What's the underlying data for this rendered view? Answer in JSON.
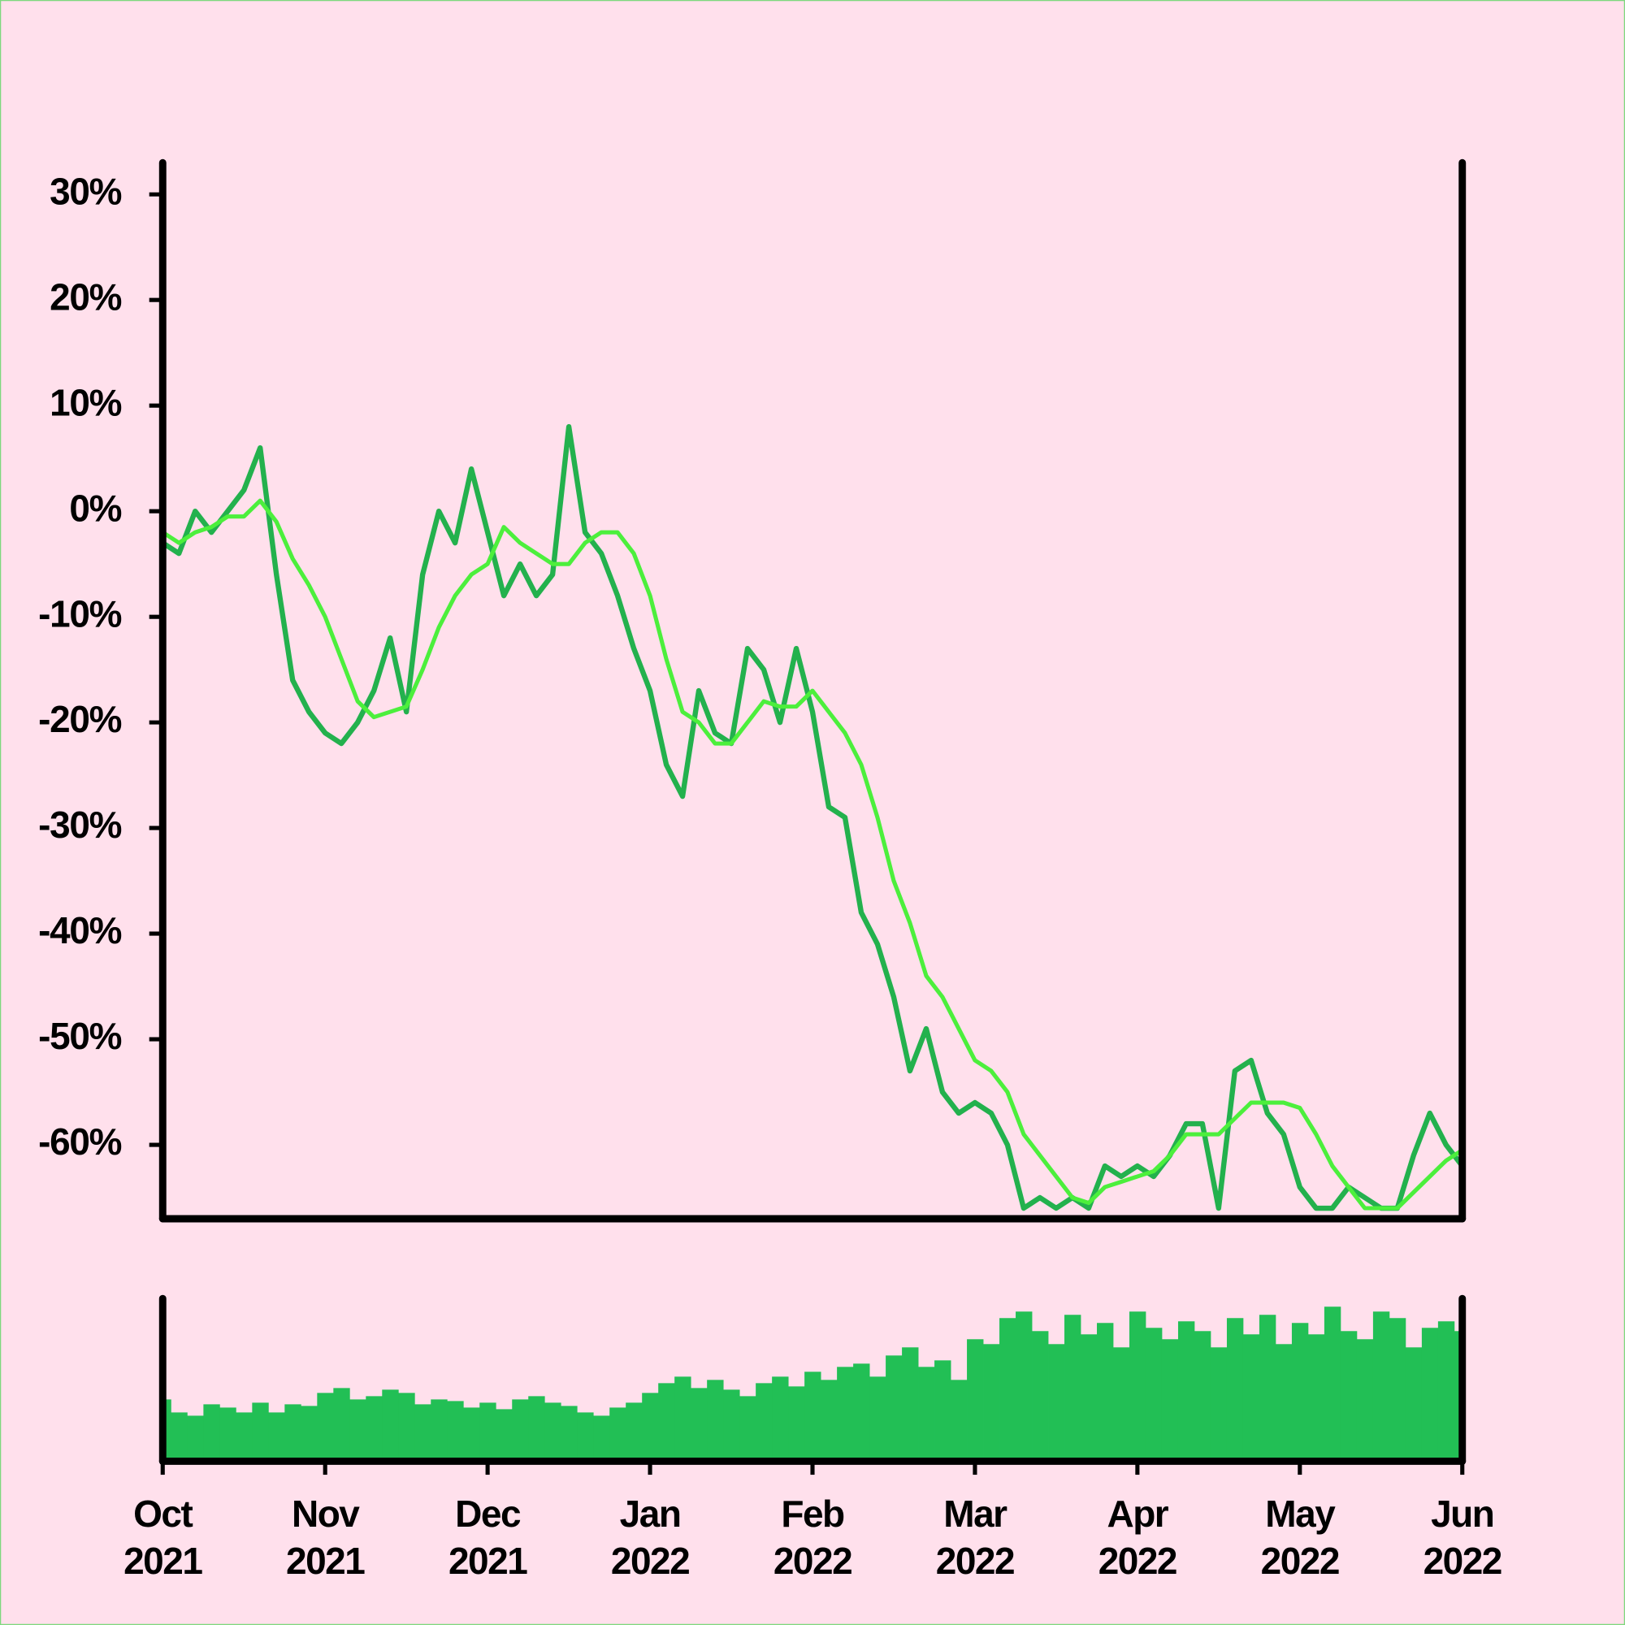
{
  "chart_data": {
    "type": "line",
    "x": [
      0,
      0.1,
      0.2,
      0.3,
      0.4,
      0.5,
      0.6,
      0.7,
      0.8,
      0.9,
      1,
      1.1,
      1.2,
      1.3,
      1.4,
      1.5,
      1.6,
      1.7,
      1.8,
      1.9,
      2,
      2.1,
      2.2,
      2.3,
      2.4,
      2.5,
      2.6,
      2.7,
      2.8,
      2.9,
      3,
      3.1,
      3.2,
      3.3,
      3.4,
      3.5,
      3.6,
      3.7,
      3.8,
      3.9,
      4,
      4.1,
      4.2,
      4.3,
      4.4,
      4.5,
      4.6,
      4.7,
      4.8,
      4.9,
      5,
      5.1,
      5.2,
      5.3,
      5.4,
      5.5,
      5.6,
      5.7,
      5.8,
      5.9,
      6,
      6.1,
      6.2,
      6.3,
      6.4,
      6.5,
      6.6,
      6.7,
      6.8,
      6.9,
      7,
      7.1,
      7.2,
      7.3,
      7.4,
      7.5,
      7.6,
      7.7,
      7.8,
      7.9,
      8
    ],
    "series": [
      {
        "color": "#23b14d",
        "values": [
          -3,
          -4,
          0,
          -2,
          0,
          2,
          6,
          -6,
          -16,
          -19,
          -21,
          -22,
          -20,
          -17,
          -12,
          -19,
          -6,
          0,
          -3,
          4,
          -2,
          -8,
          -5,
          -8,
          -6,
          8,
          -2,
          -4,
          -8,
          -13,
          -17,
          -24,
          -27,
          -17,
          -21,
          -22,
          -13,
          -15,
          -20,
          -13,
          -19,
          -28,
          -29,
          -38,
          -41,
          -46,
          -53,
          -49,
          -55,
          -57,
          -56,
          -57,
          -60,
          -66,
          -65,
          -66,
          -65,
          -66,
          -62,
          -63,
          -62,
          -63,
          -61,
          -58,
          -58,
          -66,
          -53,
          -52,
          -57,
          -59,
          -64,
          -66,
          -66,
          -64,
          -65,
          -66,
          -66,
          -61,
          -57,
          -60,
          -62
        ]
      },
      {
        "color": "#4cef3c",
        "values": [
          -2,
          -3,
          -2,
          -1.5,
          -0.5,
          -0.5,
          1,
          -1,
          -4.5,
          -7,
          -10,
          -14,
          -18,
          -19.5,
          -19,
          -18.5,
          -15,
          -11,
          -8,
          -6,
          -5,
          -1.5,
          -3,
          -4,
          -5,
          -5,
          -3,
          -2,
          -2,
          -4,
          -8,
          -14,
          -19,
          -20,
          -22,
          -22,
          -20,
          -18,
          -18.5,
          -18.5,
          -17,
          -19,
          -21,
          -24,
          -29,
          -35,
          -39,
          -44,
          -46,
          -49,
          -52,
          -53,
          -55,
          -59,
          -61,
          -63,
          -65,
          -65.5,
          -64,
          -63.5,
          -63,
          -62.5,
          -61,
          -59,
          -59,
          -59,
          -57.5,
          -56,
          -56,
          -56,
          -56.5,
          -59,
          -62,
          -64,
          -66,
          -66,
          -66,
          -64.5,
          -63,
          -61.5,
          -60.5
        ]
      }
    ],
    "volume": {
      "type": "bar",
      "color": "#22bf55",
      "ylim": [
        0,
        100
      ],
      "values": [
        38,
        30,
        28,
        35,
        33,
        30,
        36,
        30,
        35,
        34,
        42,
        45,
        38,
        40,
        44,
        42,
        35,
        38,
        37,
        33,
        36,
        32,
        38,
        40,
        36,
        34,
        30,
        28,
        33,
        36,
        42,
        48,
        52,
        45,
        50,
        44,
        40,
        48,
        52,
        46,
        55,
        50,
        58,
        60,
        52,
        65,
        70,
        58,
        62,
        50,
        75,
        72,
        88,
        92,
        80,
        72,
        90,
        78,
        85,
        70,
        92,
        82,
        75,
        86,
        80,
        70,
        88,
        78,
        90,
        72,
        85,
        78,
        95,
        80,
        75,
        92,
        88,
        70,
        82,
        86,
        80
      ]
    },
    "xlim": [
      0,
      8
    ],
    "xticks": [
      {
        "value": 0,
        "label": "Oct\n2021"
      },
      {
        "value": 1,
        "label": "Nov\n2021"
      },
      {
        "value": 2,
        "label": "Dec\n2021"
      },
      {
        "value": 3,
        "label": "Jan\n2022"
      },
      {
        "value": 4,
        "label": "Feb\n2022"
      },
      {
        "value": 5,
        "label": "Mar\n2022"
      },
      {
        "value": 6,
        "label": "Apr\n2022"
      },
      {
        "value": 7,
        "label": "May\n2022"
      },
      {
        "value": 8,
        "label": "Jun\n2022"
      }
    ],
    "ylim": [
      -67,
      33
    ],
    "yticks": [
      {
        "value": 30,
        "label": "30%"
      },
      {
        "value": 20,
        "label": "20%"
      },
      {
        "value": 10,
        "label": "10%"
      },
      {
        "value": 0,
        "label": "0%"
      },
      {
        "value": -10,
        "label": "-10%"
      },
      {
        "value": -20,
        "label": "-20%"
      },
      {
        "value": -30,
        "label": "-30%"
      },
      {
        "value": -40,
        "label": "-40%"
      },
      {
        "value": -50,
        "label": "-50%"
      },
      {
        "value": -60,
        "label": "-60%"
      }
    ]
  }
}
